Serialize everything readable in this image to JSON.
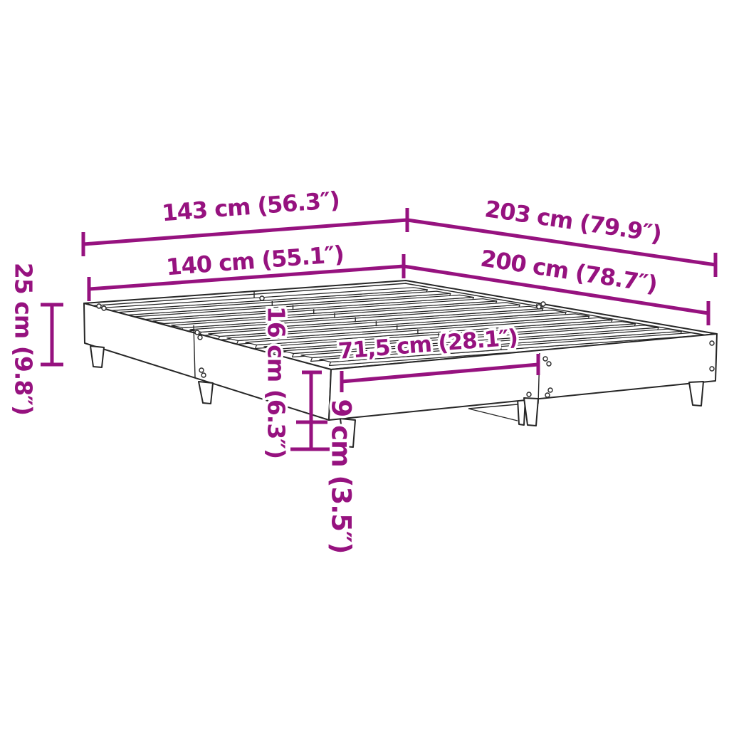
{
  "diagram": {
    "type": "product-dimension-diagram",
    "subject": "slatted bed frame line drawing with measurements",
    "colors": {
      "dimension": "#96127f",
      "outline": "#262626",
      "background": "#ffffff"
    },
    "dimensions": {
      "width_outer": {
        "label": "143 cm (56.3″)"
      },
      "length_outer": {
        "label": "203 cm (79.9″)"
      },
      "width_inner": {
        "label": "140 cm (55.1″)"
      },
      "length_inner": {
        "label": "200 cm (78.7″)"
      },
      "total_height": {
        "label": "25 cm (9.8″)"
      },
      "frame_height": {
        "label": "16 cm (6.3″)"
      },
      "under_bed_clearance": {
        "label": "9 cm (3.5″)"
      },
      "slat_section_width": {
        "label": "71,5 cm (28.1″)"
      }
    }
  }
}
